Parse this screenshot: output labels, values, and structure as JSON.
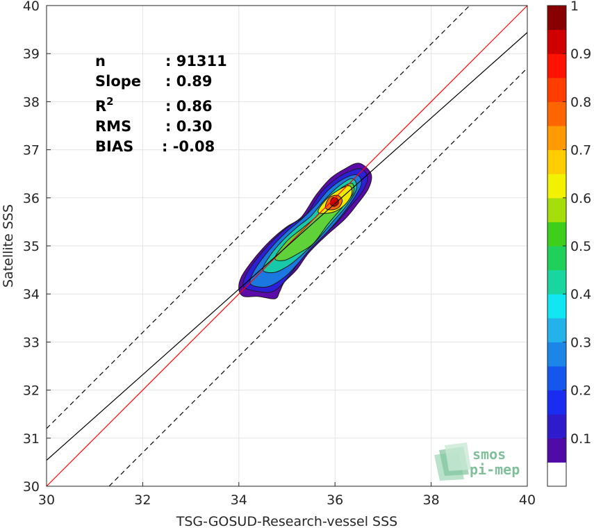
{
  "chart_data": {
    "type": "heatmap",
    "subtype": "density-contour-scatter",
    "xlabel": "TSG-GOSUD-Research-vessel SSS",
    "ylabel": "Satellite SSS",
    "xlim": [
      30,
      40
    ],
    "ylim": [
      30,
      40
    ],
    "xticks": [
      "30",
      "32",
      "34",
      "36",
      "38",
      "40"
    ],
    "yticks": [
      "30",
      "31",
      "32",
      "33",
      "34",
      "35",
      "36",
      "37",
      "38",
      "39",
      "40"
    ],
    "grid": true,
    "stats": [
      {
        "label": "n",
        "value": ": 91311"
      },
      {
        "label": "Slope",
        "value": ": 0.89"
      },
      {
        "label": "R",
        "sup": "2",
        "value": ": 0.86"
      },
      {
        "label": "RMS",
        "value": ": 0.30"
      },
      {
        "label": "BIAS",
        "value": ": -0.08"
      }
    ],
    "lines": [
      {
        "kind": "one-to-one",
        "color": "#ff0000",
        "slope": 1.0,
        "intercept": 0.0
      },
      {
        "kind": "regression",
        "color": "#000000",
        "slope": 0.89,
        "intercept": 3.84
      },
      {
        "kind": "upper-bound",
        "color": "#000000",
        "dashed": true,
        "slope": 1.0,
        "intercept": 1.2
      },
      {
        "kind": "lower-bound",
        "color": "#000000",
        "dashed": true,
        "slope": 1.0,
        "intercept": -1.3
      }
    ],
    "density_contours": [
      {
        "level": 0.05,
        "color": "#5b0ba8",
        "points": [
          [
            34.0,
            34.1
          ],
          [
            34.05,
            34.35
          ],
          [
            34.25,
            34.65
          ],
          [
            34.5,
            34.95
          ],
          [
            34.75,
            35.2
          ],
          [
            35.0,
            35.4
          ],
          [
            35.3,
            35.6
          ],
          [
            35.6,
            36.05
          ],
          [
            35.9,
            36.4
          ],
          [
            36.2,
            36.6
          ],
          [
            36.5,
            36.72
          ],
          [
            36.75,
            36.5
          ],
          [
            36.7,
            36.2
          ],
          [
            36.45,
            35.85
          ],
          [
            36.2,
            35.55
          ],
          [
            35.8,
            35.2
          ],
          [
            35.45,
            34.85
          ],
          [
            35.2,
            34.5
          ],
          [
            34.95,
            34.25
          ],
          [
            34.85,
            34.05
          ],
          [
            34.75,
            33.9
          ],
          [
            34.4,
            33.95
          ],
          [
            34.1,
            33.95
          ]
        ]
      },
      {
        "level": 0.15,
        "color": "#2b1fd8",
        "points": [
          [
            34.1,
            34.15
          ],
          [
            34.15,
            34.4
          ],
          [
            34.35,
            34.7
          ],
          [
            34.6,
            35.0
          ],
          [
            34.85,
            35.25
          ],
          [
            35.1,
            35.45
          ],
          [
            35.4,
            35.65
          ],
          [
            35.7,
            36.1
          ],
          [
            36.0,
            36.38
          ],
          [
            36.3,
            36.55
          ],
          [
            36.55,
            36.6
          ],
          [
            36.68,
            36.4
          ],
          [
            36.55,
            36.1
          ],
          [
            36.3,
            35.8
          ],
          [
            36.05,
            35.5
          ],
          [
            35.7,
            35.15
          ],
          [
            35.35,
            34.8
          ],
          [
            35.1,
            34.45
          ],
          [
            34.9,
            34.2
          ],
          [
            34.7,
            34.05
          ],
          [
            34.4,
            34.05
          ]
        ]
      },
      {
        "level": 0.3,
        "color": "#1a78e0",
        "points": [
          [
            34.25,
            34.2
          ],
          [
            34.3,
            34.45
          ],
          [
            34.5,
            34.75
          ],
          [
            34.75,
            35.05
          ],
          [
            35.0,
            35.3
          ],
          [
            35.3,
            35.55
          ],
          [
            35.6,
            35.85
          ],
          [
            35.85,
            36.15
          ],
          [
            36.15,
            36.38
          ],
          [
            36.45,
            36.48
          ],
          [
            36.55,
            36.3
          ],
          [
            36.4,
            36.0
          ],
          [
            36.15,
            35.65
          ],
          [
            35.85,
            35.3
          ],
          [
            35.5,
            34.95
          ],
          [
            35.2,
            34.6
          ],
          [
            34.95,
            34.35
          ],
          [
            34.6,
            34.15
          ]
        ]
      },
      {
        "level": 0.45,
        "color": "#18c9a9",
        "points": [
          [
            34.5,
            34.5
          ],
          [
            34.65,
            34.8
          ],
          [
            34.9,
            35.1
          ],
          [
            35.2,
            35.38
          ],
          [
            35.5,
            35.62
          ],
          [
            35.75,
            35.92
          ],
          [
            36.05,
            36.22
          ],
          [
            36.35,
            36.4
          ],
          [
            36.45,
            36.2
          ],
          [
            36.25,
            35.85
          ],
          [
            35.95,
            35.5
          ],
          [
            35.65,
            35.15
          ],
          [
            35.35,
            34.85
          ],
          [
            35.05,
            34.6
          ],
          [
            34.75,
            34.45
          ]
        ]
      },
      {
        "level": 0.55,
        "color": "#5fd23a",
        "points": [
          [
            34.75,
            34.75
          ],
          [
            35.0,
            35.1
          ],
          [
            35.3,
            35.35
          ],
          [
            35.6,
            35.6
          ],
          [
            35.85,
            35.9
          ],
          [
            36.1,
            36.18
          ],
          [
            36.35,
            36.3
          ],
          [
            36.38,
            36.1
          ],
          [
            36.15,
            35.8
          ],
          [
            35.85,
            35.45
          ],
          [
            35.55,
            35.05
          ],
          [
            35.25,
            34.85
          ],
          [
            34.95,
            34.7
          ]
        ]
      },
      {
        "level": 0.65,
        "color": "#f0e800",
        "points": [
          [
            35.65,
            35.7
          ],
          [
            35.8,
            35.95
          ],
          [
            36.05,
            36.15
          ],
          [
            36.3,
            36.25
          ],
          [
            36.35,
            36.08
          ],
          [
            36.2,
            35.85
          ],
          [
            35.95,
            35.7
          ]
        ]
      },
      {
        "level": 0.8,
        "color": "#ff6a00",
        "points": [
          [
            35.8,
            35.8
          ],
          [
            35.88,
            36.0
          ],
          [
            36.05,
            36.05
          ],
          [
            36.15,
            35.95
          ],
          [
            36.08,
            35.8
          ],
          [
            35.92,
            35.75
          ]
        ]
      },
      {
        "level": 0.95,
        "color": "#c80000",
        "points": [
          [
            35.9,
            35.88
          ],
          [
            35.95,
            36.0
          ],
          [
            36.05,
            35.98
          ],
          [
            36.07,
            35.88
          ],
          [
            35.98,
            35.82
          ]
        ]
      }
    ],
    "colorbar": {
      "ticks": [
        "0.1",
        "0.2",
        "0.3",
        "0.4",
        "0.5",
        "0.6",
        "0.7",
        "0.8",
        "0.9",
        "1"
      ],
      "colors": [
        "#ffffff",
        "#4f0aa8",
        "#2d1bcc",
        "#1a2cf0",
        "#1556ee",
        "#1b86e8",
        "#23b2ea",
        "#12e6f2",
        "#19d6a0",
        "#1fd05a",
        "#3fce19",
        "#a6de0b",
        "#f2f200",
        "#ffcd00",
        "#ff9a00",
        "#ff6600",
        "#ff3d00",
        "#ff1200",
        "#d10000",
        "#880000"
      ]
    }
  },
  "logo": {
    "line1": "smos",
    "line2": "pi-mep"
  }
}
